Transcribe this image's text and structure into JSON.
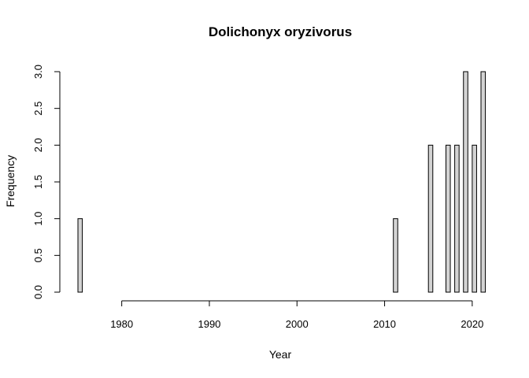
{
  "chart_data": {
    "type": "bar",
    "title": "Dolichonyx oryzivorus",
    "xlabel": "Year",
    "ylabel": "Frequency",
    "xlim": [
      1975,
      2021
    ],
    "ylim": [
      0,
      3
    ],
    "x_ticks": [
      1980,
      1990,
      2000,
      2010,
      2020
    ],
    "y_ticks": [
      "0.0",
      "0.5",
      "1.0",
      "1.5",
      "2.0",
      "2.5",
      "3.0"
    ],
    "bin_width": 1,
    "bins": [
      {
        "start": 1975,
        "value": 1
      },
      {
        "start": 1976,
        "value": 0
      },
      {
        "start": 1977,
        "value": 0
      },
      {
        "start": 1978,
        "value": 0
      },
      {
        "start": 1979,
        "value": 0
      },
      {
        "start": 1980,
        "value": 0
      },
      {
        "start": 1981,
        "value": 0
      },
      {
        "start": 1982,
        "value": 0
      },
      {
        "start": 1983,
        "value": 0
      },
      {
        "start": 1984,
        "value": 0
      },
      {
        "start": 1985,
        "value": 0
      },
      {
        "start": 1986,
        "value": 0
      },
      {
        "start": 1987,
        "value": 0
      },
      {
        "start": 1988,
        "value": 0
      },
      {
        "start": 1989,
        "value": 0
      },
      {
        "start": 1990,
        "value": 0
      },
      {
        "start": 1991,
        "value": 0
      },
      {
        "start": 1992,
        "value": 0
      },
      {
        "start": 1993,
        "value": 0
      },
      {
        "start": 1994,
        "value": 0
      },
      {
        "start": 1995,
        "value": 0
      },
      {
        "start": 1996,
        "value": 0
      },
      {
        "start": 1997,
        "value": 0
      },
      {
        "start": 1998,
        "value": 0
      },
      {
        "start": 1999,
        "value": 0
      },
      {
        "start": 2000,
        "value": 0
      },
      {
        "start": 2001,
        "value": 0
      },
      {
        "start": 2002,
        "value": 0
      },
      {
        "start": 2003,
        "value": 0
      },
      {
        "start": 2004,
        "value": 0
      },
      {
        "start": 2005,
        "value": 0
      },
      {
        "start": 2006,
        "value": 0
      },
      {
        "start": 2007,
        "value": 0
      },
      {
        "start": 2008,
        "value": 0
      },
      {
        "start": 2009,
        "value": 0
      },
      {
        "start": 2010,
        "value": 0
      },
      {
        "start": 2011,
        "value": 1
      },
      {
        "start": 2012,
        "value": 0
      },
      {
        "start": 2013,
        "value": 0
      },
      {
        "start": 2014,
        "value": 0
      },
      {
        "start": 2015,
        "value": 2
      },
      {
        "start": 2016,
        "value": 0
      },
      {
        "start": 2017,
        "value": 2
      },
      {
        "start": 2018,
        "value": 2
      },
      {
        "start": 2019,
        "value": 3
      },
      {
        "start": 2020,
        "value": 2
      },
      {
        "start": 2021,
        "value": 3
      }
    ],
    "bar_color": "#d3d3d3",
    "grid": false,
    "legend": "none"
  }
}
